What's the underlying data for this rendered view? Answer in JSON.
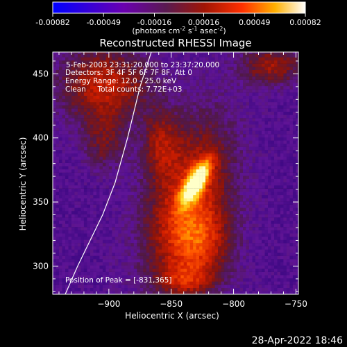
{
  "colorbar": {
    "tick_labels": [
      "-0.00082",
      "-0.00049",
      "-0.00016",
      "0.00016",
      "0.00049",
      "0.00082"
    ],
    "tick_values": [
      -0.00082,
      -0.00049,
      -0.00016,
      0.00016,
      0.00049,
      0.00082
    ],
    "unit_prefix": "(photons cm",
    "unit_exp1": "-2",
    "unit_mid": " s",
    "unit_exp2": "-1",
    "unit_mid2": " asec",
    "unit_exp3": "-2",
    "unit_suffix": ")",
    "colors": [
      "#0000ff",
      "#6a00b0",
      "#5a1a50",
      "#8a1a08",
      "#ff3000",
      "#ffb000",
      "#ffffff"
    ]
  },
  "timestamp": "28-Apr-2022 18:46",
  "chart_data": {
    "type": "heatmap",
    "title": "Reconstructed RHESSI Image",
    "xlabel": "Heliocentric X (arcsec)",
    "ylabel": "Heliocentric Y (arcsec)",
    "xlim": [
      -945,
      -748
    ],
    "ylim": [
      278,
      467
    ],
    "x_ticks": [
      -900,
      -850,
      -800,
      -750
    ],
    "x_tick_labels": [
      "−900",
      "−850",
      "−800",
      "−750"
    ],
    "y_ticks": [
      300,
      350,
      400,
      450
    ],
    "y_tick_labels": [
      "300",
      "350",
      "400",
      "450"
    ],
    "annotations": [
      "5-Feb-2003 23:31:20.000 to 23:37:20.000",
      "Detectors: 3F 4F 5F 6F 7F 8F, Att 0",
      "Energy Range: 12.0 - 25.0 keV",
      "Clean     Total counts: 7.72E+03"
    ],
    "peak_label": "Position of Peak = [-831,365]",
    "peak": [
      -831,
      365
    ],
    "value_range": [
      -0.00082,
      0.00082
    ],
    "grid": false,
    "limb_curve": {
      "x": [
        -935,
        -925,
        -915,
        -905,
        -895,
        -885,
        -875,
        -866
      ],
      "y": [
        278,
        300,
        320,
        340,
        365,
        400,
        440,
        467
      ]
    }
  }
}
